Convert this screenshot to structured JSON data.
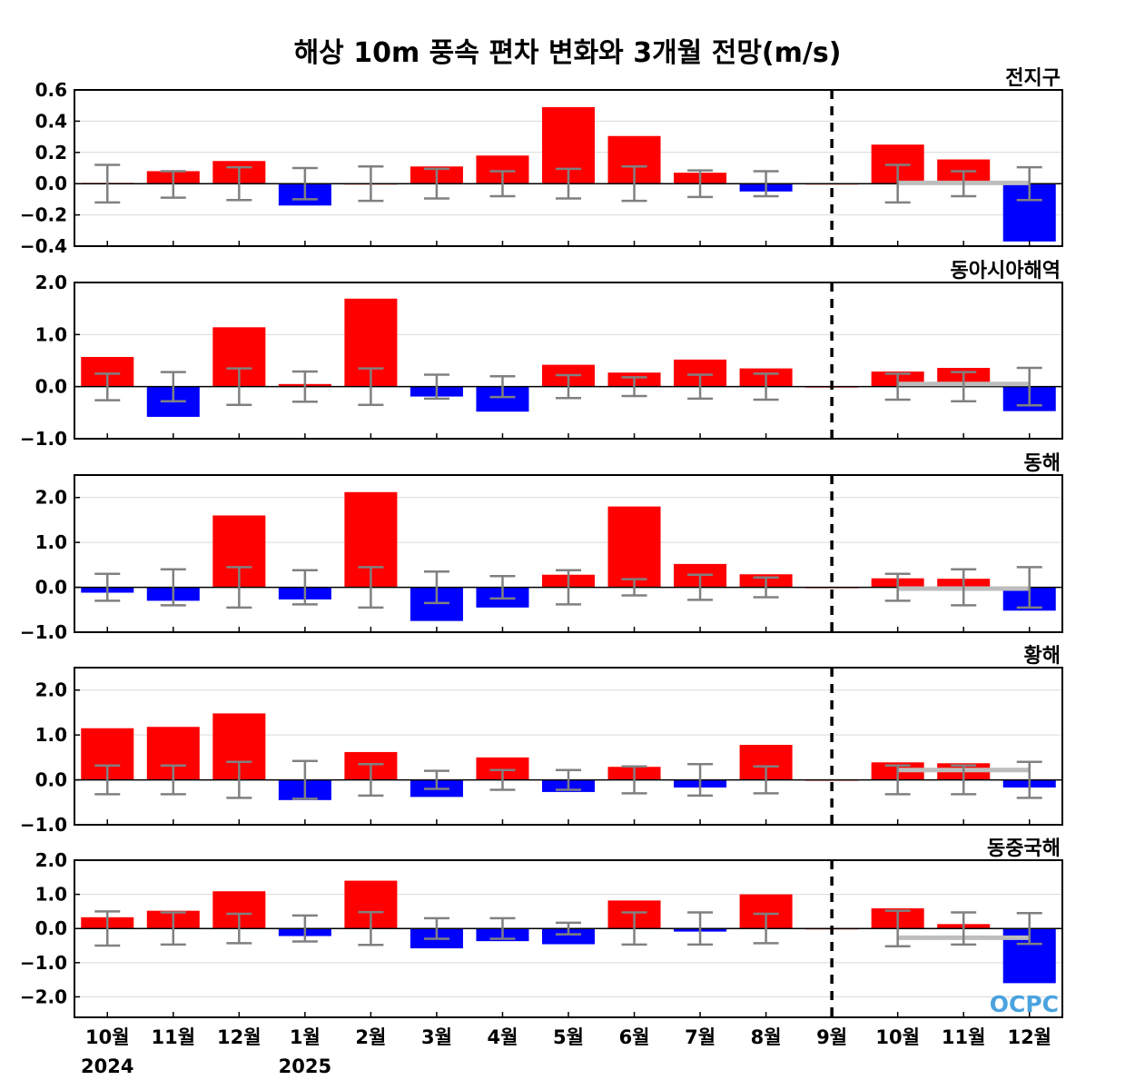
{
  "title": "해상 10m 풍속 편차 변화와 3개월 전망(m/s)",
  "logo": "OCPC",
  "colors": {
    "positive": "#ff0000",
    "negative": "#0000ff",
    "errorbar": "#808080",
    "forecast_line": "#bdbdbd",
    "divider": "#000000",
    "grid": "#d9d9d9"
  },
  "chart_data": {
    "type": "bar",
    "categories": [
      "10월",
      "11월",
      "12월",
      "1월",
      "2월",
      "3월",
      "4월",
      "5월",
      "6월",
      "7월",
      "8월",
      "9월",
      "10월",
      "11월",
      "12월"
    ],
    "year_labels": [
      {
        "category_index": 0,
        "text": "2024"
      },
      {
        "category_index": 3,
        "text": "2025"
      }
    ],
    "forecast_divider_after": "9월",
    "grid": true,
    "panels": [
      {
        "name": "전지구",
        "ylim": [
          -0.4,
          0.6
        ],
        "yticks": [
          -0.4,
          -0.2,
          0.0,
          0.2,
          0.4,
          0.6
        ],
        "ytick_labels": [
          "−0.4",
          "−0.2",
          "0.0",
          "0.2",
          "0.4",
          "0.6"
        ],
        "values": [
          0.005,
          0.08,
          0.145,
          -0.14,
          0.0,
          0.11,
          0.18,
          0.49,
          0.305,
          0.07,
          -0.05,
          0.0,
          0.25,
          0.155,
          -0.37
        ],
        "error_bars": [
          [
            -0.12,
            0.12
          ],
          [
            -0.09,
            0.08
          ],
          [
            -0.105,
            0.105
          ],
          [
            -0.1,
            0.1
          ],
          [
            -0.11,
            0.11
          ],
          [
            -0.095,
            0.095
          ],
          [
            -0.08,
            0.08
          ],
          [
            -0.095,
            0.095
          ],
          [
            -0.11,
            0.11
          ],
          [
            -0.085,
            0.085
          ],
          [
            -0.08,
            0.08
          ],
          null,
          [
            -0.12,
            0.12
          ],
          [
            -0.08,
            0.08
          ],
          [
            -0.105,
            0.105
          ]
        ],
        "forecast_line": {
          "from": 12,
          "to": 14,
          "value": 0.005
        }
      },
      {
        "name": "동아시아해역",
        "ylim": [
          -1.0,
          2.0
        ],
        "yticks": [
          -1.0,
          0.0,
          1.0,
          2.0
        ],
        "ytick_labels": [
          "−1.0",
          "0.0",
          "1.0",
          "2.0"
        ],
        "values": [
          0.57,
          -0.58,
          1.14,
          0.05,
          1.69,
          -0.19,
          -0.48,
          0.42,
          0.27,
          0.52,
          0.35,
          0.0,
          0.29,
          0.36,
          -0.47
        ],
        "error_bars": [
          [
            -0.26,
            0.25
          ],
          [
            -0.28,
            0.28
          ],
          [
            -0.35,
            0.35
          ],
          [
            -0.29,
            0.29
          ],
          [
            -0.35,
            0.35
          ],
          [
            -0.23,
            0.23
          ],
          [
            -0.2,
            0.2
          ],
          [
            -0.22,
            0.22
          ],
          [
            -0.18,
            0.18
          ],
          [
            -0.23,
            0.23
          ],
          [
            -0.25,
            0.25
          ],
          null,
          [
            -0.25,
            0.25
          ],
          [
            -0.28,
            0.28
          ],
          [
            -0.36,
            0.36
          ]
        ],
        "forecast_line": {
          "from": 12,
          "to": 14,
          "value": 0.05
        }
      },
      {
        "name": "동해",
        "ylim": [
          -1.0,
          2.5
        ],
        "yticks": [
          -1.0,
          0.0,
          1.0,
          2.0
        ],
        "ytick_labels": [
          "−1.0",
          "0.0",
          "1.0",
          "2.0"
        ],
        "values": [
          -0.12,
          -0.3,
          1.6,
          -0.27,
          2.12,
          -0.75,
          -0.45,
          0.28,
          1.8,
          0.52,
          0.29,
          0.0,
          0.2,
          0.19,
          -0.52
        ],
        "error_bars": [
          [
            -0.3,
            0.3
          ],
          [
            -0.4,
            0.4
          ],
          [
            -0.45,
            0.45
          ],
          [
            -0.38,
            0.38
          ],
          [
            -0.45,
            0.45
          ],
          [
            -0.35,
            0.35
          ],
          [
            -0.25,
            0.25
          ],
          [
            -0.38,
            0.38
          ],
          [
            -0.18,
            0.18
          ],
          [
            -0.28,
            0.28
          ],
          [
            -0.22,
            0.22
          ],
          null,
          [
            -0.3,
            0.3
          ],
          [
            -0.4,
            0.4
          ],
          [
            -0.45,
            0.45
          ]
        ],
        "forecast_line": {
          "from": 12,
          "to": 14,
          "value": -0.03
        }
      },
      {
        "name": "황해",
        "ylim": [
          -1.0,
          2.5
        ],
        "yticks": [
          -1.0,
          0.0,
          1.0,
          2.0
        ],
        "ytick_labels": [
          "−1.0",
          "0.0",
          "1.0",
          "2.0"
        ],
        "values": [
          1.15,
          1.18,
          1.48,
          -0.45,
          0.62,
          -0.38,
          0.5,
          -0.27,
          0.29,
          -0.17,
          0.78,
          0.0,
          0.39,
          0.37,
          -0.17
        ],
        "error_bars": [
          [
            -0.32,
            0.32
          ],
          [
            -0.32,
            0.32
          ],
          [
            -0.4,
            0.4
          ],
          [
            -0.42,
            0.42
          ],
          [
            -0.35,
            0.35
          ],
          [
            -0.2,
            0.2
          ],
          [
            -0.22,
            0.22
          ],
          [
            -0.22,
            0.22
          ],
          [
            -0.3,
            0.3
          ],
          [
            -0.35,
            0.35
          ],
          [
            -0.3,
            0.3
          ],
          null,
          [
            -0.32,
            0.32
          ],
          [
            -0.32,
            0.32
          ],
          [
            -0.4,
            0.4
          ]
        ],
        "forecast_line": {
          "from": 12,
          "to": 14,
          "value": 0.22
        }
      },
      {
        "name": "동중국해",
        "ylim": [
          -2.6,
          2.0
        ],
        "yticks": [
          -2.0,
          -1.0,
          0.0,
          1.0,
          2.0
        ],
        "ytick_labels": [
          "−2.0",
          "−1.0",
          "0.0",
          "1.0",
          "2.0"
        ],
        "values": [
          0.33,
          0.52,
          1.09,
          -0.22,
          1.4,
          -0.58,
          -0.37,
          -0.46,
          0.82,
          -0.09,
          1.0,
          0.0,
          0.59,
          0.13,
          -1.6
        ],
        "error_bars": [
          [
            -0.5,
            0.5
          ],
          [
            -0.47,
            0.47
          ],
          [
            -0.43,
            0.43
          ],
          [
            -0.38,
            0.38
          ],
          [
            -0.48,
            0.48
          ],
          [
            -0.3,
            0.3
          ],
          [
            -0.3,
            0.3
          ],
          [
            -0.17,
            0.17
          ],
          [
            -0.47,
            0.47
          ],
          [
            -0.47,
            0.47
          ],
          [
            -0.43,
            0.43
          ],
          null,
          [
            -0.52,
            0.52
          ],
          [
            -0.47,
            0.47
          ],
          [
            -0.45,
            0.45
          ]
        ],
        "forecast_line": {
          "from": 12,
          "to": 14,
          "value": -0.27
        }
      }
    ]
  }
}
